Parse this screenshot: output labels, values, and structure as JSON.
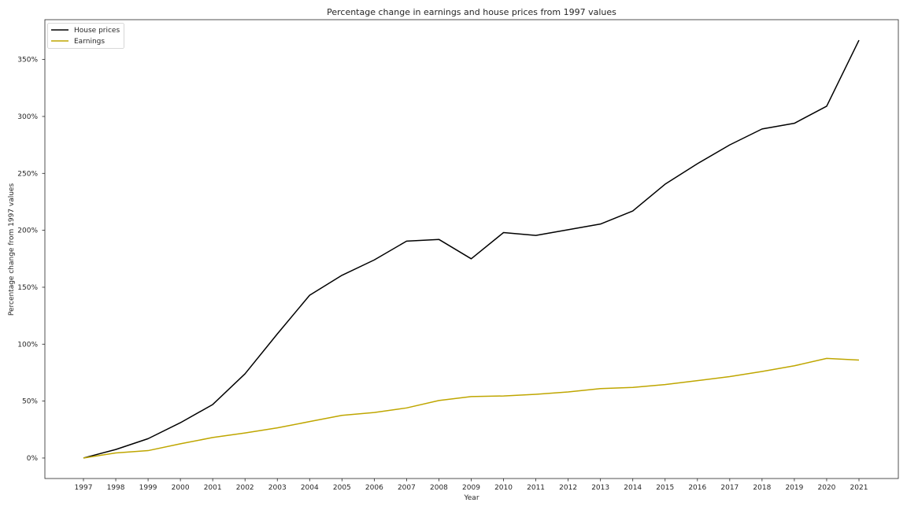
{
  "chart_data": {
    "type": "line",
    "title": "Percentage change in earnings and house prices from 1997 values",
    "xlabel": "Year",
    "ylabel": "Percentage change from 1997 values",
    "x": [
      "1997",
      "1998",
      "1999",
      "2000",
      "2001",
      "2002",
      "2003",
      "2004",
      "2005",
      "2006",
      "2007",
      "2008",
      "2009",
      "2010",
      "2011",
      "2012",
      "2013",
      "2014",
      "2015",
      "2016",
      "2017",
      "2018",
      "2019",
      "2020",
      "2021"
    ],
    "yticks": [
      0,
      50,
      100,
      150,
      200,
      250,
      300,
      350
    ],
    "ytick_labels": [
      "0%",
      "50%",
      "100%",
      "150%",
      "200%",
      "250%",
      "300%",
      "350%"
    ],
    "ylim": [
      -18,
      385
    ],
    "grid": false,
    "legend_position": "top-left",
    "series": [
      {
        "name": "House prices",
        "color": "#000000",
        "values": [
          0,
          7.5,
          17,
          31,
          47,
          74,
          109,
          143,
          160.5,
          174,
          190.5,
          192,
          175,
          198,
          195.5,
          200.5,
          205.5,
          217,
          240.5,
          258.5,
          275,
          289,
          294,
          309,
          367
        ]
      },
      {
        "name": "Earnings",
        "color": "#bfa600",
        "values": [
          0,
          4.5,
          6.5,
          12.5,
          18,
          22,
          26.5,
          32,
          37.5,
          40,
          44,
          50.5,
          54,
          54.5,
          56,
          58,
          61,
          62,
          64.5,
          68,
          71.5,
          76,
          81,
          87.5,
          86
        ]
      }
    ]
  }
}
